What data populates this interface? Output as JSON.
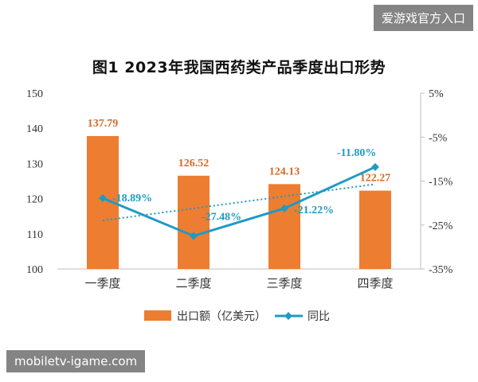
{
  "watermark": {
    "top_right": "爱游戏官方入口",
    "bottom_left": "mobiletv-igame.com"
  },
  "chart_data": {
    "type": "bar",
    "title": "图1  2023年我国西药类产品季度出口形势",
    "categories": [
      "一季度",
      "二季度",
      "三季度",
      "四季度"
    ],
    "series": [
      {
        "name": "出口额（亿美元）",
        "type": "bar",
        "axis": "left",
        "values": [
          137.79,
          126.52,
          124.13,
          122.27
        ],
        "labels": [
          "137.79",
          "126.52",
          "124.13",
          "122.27"
        ],
        "color": "#ED7D31"
      },
      {
        "name": "同比",
        "type": "line",
        "axis": "right",
        "values": [
          -18.89,
          -27.48,
          -21.22,
          -11.8
        ],
        "labels": [
          "-18.89%",
          "-27.48%",
          "-21.22%",
          "-11.80%"
        ],
        "color": "#1E9BC4",
        "trendline": true
      }
    ],
    "left_axis": {
      "ylim": [
        100,
        150
      ],
      "ticks": [
        "100",
        "110",
        "120",
        "130",
        "140",
        "150"
      ]
    },
    "right_axis": {
      "ylim": [
        -35,
        5
      ],
      "ticks": [
        "-35%",
        "-25%",
        "-15%",
        "-5%",
        "5%"
      ]
    },
    "legend_position": "bottom",
    "grid": false,
    "colors": {
      "bar_label": "#D46A2B",
      "line_label": "#1E9BC4",
      "axis": "#BFBFBF",
      "text": "#333333"
    }
  }
}
